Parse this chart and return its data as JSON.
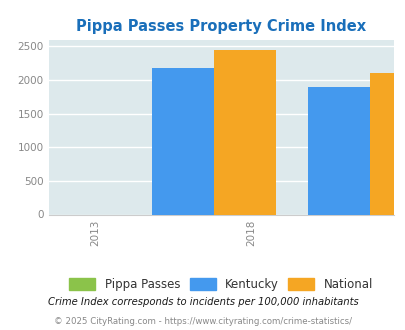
{
  "title": "Pippa Passes Property Crime Index",
  "title_color": "#1a6fba",
  "years": [
    "2013",
    "2018"
  ],
  "pippa_passes": [
    0,
    0
  ],
  "kentucky": [
    2180,
    1900
  ],
  "national": [
    2450,
    2100
  ],
  "bar_colors": {
    "pippa_passes": "#8BC34A",
    "kentucky": "#4499EE",
    "national": "#F5A623"
  },
  "ylim": [
    0,
    2600
  ],
  "yticks": [
    0,
    500,
    1000,
    1500,
    2000,
    2500
  ],
  "plot_bg_color": "#DDE9EC",
  "fig_bg_color": "#FFFFFF",
  "legend_labels": [
    "Pippa Passes",
    "Kentucky",
    "National"
  ],
  "footnote1": "Crime Index corresponds to incidents per 100,000 inhabitants",
  "footnote2": "© 2025 CityRating.com - https://www.cityrating.com/crime-statistics/",
  "bar_width": 0.18
}
